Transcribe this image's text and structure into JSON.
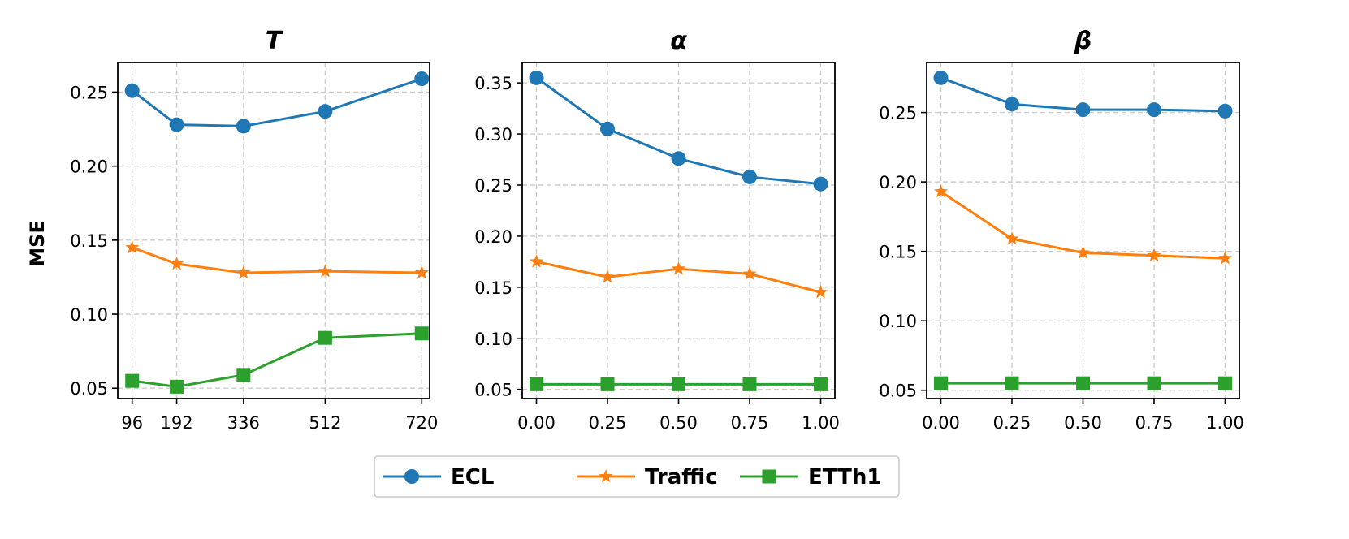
{
  "chart_data": [
    {
      "type": "line",
      "title": "T",
      "xlabel": "",
      "ylabel": "MSE",
      "x": [
        96,
        192,
        336,
        512,
        720
      ],
      "x_tick_labels": [
        "96",
        "192",
        "336",
        "512",
        "720"
      ],
      "xlim": [
        65,
        737
      ],
      "ylim": [
        0.043,
        0.27
      ],
      "y_ticks": [
        0.05,
        0.1,
        0.15,
        0.2,
        0.25
      ],
      "y_tick_labels": [
        "0.05",
        "0.10",
        "0.15",
        "0.20",
        "0.25"
      ],
      "grid": true,
      "series": [
        {
          "name": "ECL",
          "values": [
            0.251,
            0.228,
            0.227,
            0.237,
            0.259
          ]
        },
        {
          "name": "Traffic",
          "values": [
            0.145,
            0.134,
            0.128,
            0.129,
            0.128
          ]
        },
        {
          "name": "ETTh1",
          "values": [
            0.055,
            0.051,
            0.059,
            0.084,
            0.087
          ]
        }
      ]
    },
    {
      "type": "line",
      "title": "α",
      "xlabel": "",
      "ylabel": "",
      "x": [
        0.0,
        0.25,
        0.5,
        0.75,
        1.0
      ],
      "x_tick_labels": [
        "0.00",
        "0.25",
        "0.50",
        "0.75",
        "1.00"
      ],
      "xlim": [
        -0.05,
        1.05
      ],
      "ylim": [
        0.041,
        0.37
      ],
      "y_ticks": [
        0.05,
        0.1,
        0.15,
        0.2,
        0.25,
        0.3,
        0.35
      ],
      "y_tick_labels": [
        "0.05",
        "0.10",
        "0.15",
        "0.20",
        "0.25",
        "0.30",
        "0.35"
      ],
      "grid": true,
      "series": [
        {
          "name": "ECL",
          "values": [
            0.355,
            0.305,
            0.276,
            0.258,
            0.251
          ]
        },
        {
          "name": "Traffic",
          "values": [
            0.175,
            0.16,
            0.168,
            0.163,
            0.145
          ]
        },
        {
          "name": "ETTh1",
          "values": [
            0.055,
            0.055,
            0.055,
            0.055,
            0.055
          ]
        }
      ]
    },
    {
      "type": "line",
      "title": "β",
      "xlabel": "",
      "ylabel": "",
      "x": [
        0.0,
        0.25,
        0.5,
        0.75,
        1.0
      ],
      "x_tick_labels": [
        "0.00",
        "0.25",
        "0.50",
        "0.75",
        "1.00"
      ],
      "xlim": [
        -0.05,
        1.05
      ],
      "ylim": [
        0.044,
        0.286
      ],
      "y_ticks": [
        0.05,
        0.1,
        0.15,
        0.2,
        0.25
      ],
      "y_tick_labels": [
        "0.05",
        "0.10",
        "0.15",
        "0.20",
        "0.25"
      ],
      "grid": true,
      "series": [
        {
          "name": "ECL",
          "values": [
            0.275,
            0.256,
            0.252,
            0.252,
            0.251
          ]
        },
        {
          "name": "Traffic",
          "values": [
            0.193,
            0.159,
            0.149,
            0.147,
            0.145
          ]
        },
        {
          "name": "ETTh1",
          "values": [
            0.055,
            0.055,
            0.055,
            0.055,
            0.055
          ]
        }
      ]
    }
  ],
  "legend": {
    "placement": "bottom-center",
    "items": [
      {
        "name": "ECL",
        "color": "#1f77b4",
        "marker": "circle"
      },
      {
        "name": "Traffic",
        "color": "#ff7f0e",
        "marker": "star"
      },
      {
        "name": "ETTh1",
        "color": "#2ca02c",
        "marker": "square"
      }
    ]
  }
}
